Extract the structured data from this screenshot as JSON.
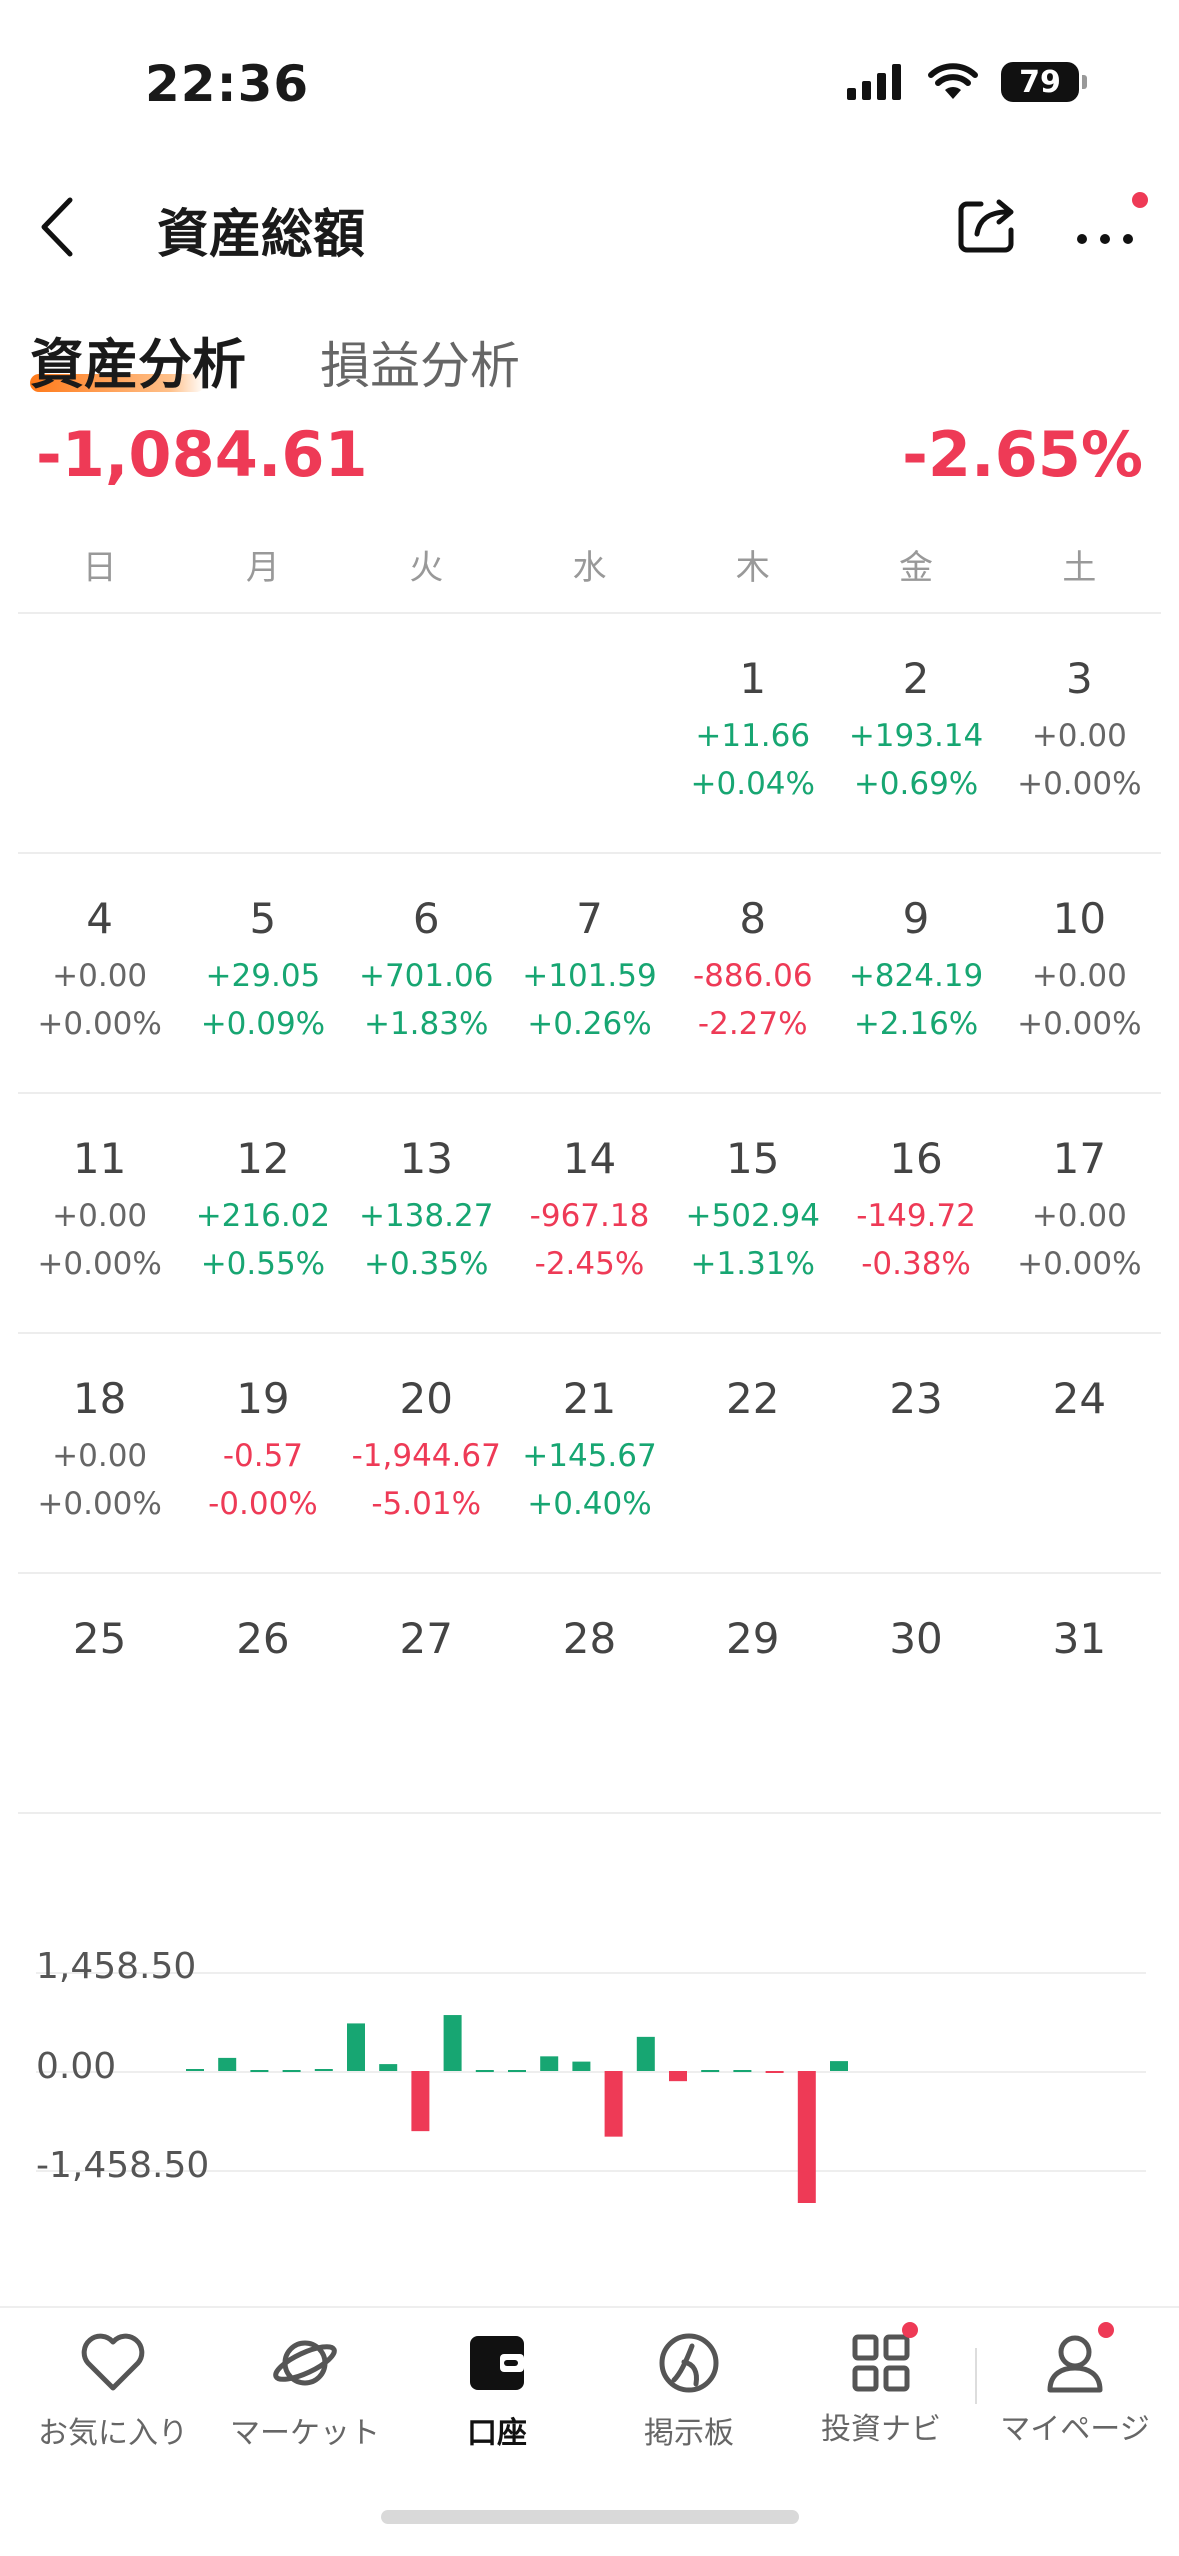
{
  "status_bar": {
    "time": "22:36",
    "battery": "79"
  },
  "header": {
    "title": "資産総額"
  },
  "tabs": {
    "active": "資産分析",
    "other": "損益分析"
  },
  "summary": {
    "total_change": "-1,084.61",
    "total_percent": "-2.65%"
  },
  "calendar": {
    "weekdays": [
      "日",
      "月",
      "火",
      "水",
      "木",
      "金",
      "土"
    ],
    "weeks": [
      [
        {
          "day": "",
          "value": "",
          "percent": "",
          "trend": "n"
        },
        {
          "day": "",
          "value": "",
          "percent": "",
          "trend": "n"
        },
        {
          "day": "",
          "value": "",
          "percent": "",
          "trend": "n"
        },
        {
          "day": "",
          "value": "",
          "percent": "",
          "trend": "n"
        },
        {
          "day": "1",
          "value": "+11.66",
          "percent": "+0.04%",
          "trend": "g"
        },
        {
          "day": "2",
          "value": "+193.14",
          "percent": "+0.69%",
          "trend": "g"
        },
        {
          "day": "3",
          "value": "+0.00",
          "percent": "+0.00%",
          "trend": "n"
        }
      ],
      [
        {
          "day": "4",
          "value": "+0.00",
          "percent": "+0.00%",
          "trend": "n"
        },
        {
          "day": "5",
          "value": "+29.05",
          "percent": "+0.09%",
          "trend": "g"
        },
        {
          "day": "6",
          "value": "+701.06",
          "percent": "+1.83%",
          "trend": "g"
        },
        {
          "day": "7",
          "value": "+101.59",
          "percent": "+0.26%",
          "trend": "g"
        },
        {
          "day": "8",
          "value": "-886.06",
          "percent": "-2.27%",
          "trend": "r"
        },
        {
          "day": "9",
          "value": "+824.19",
          "percent": "+2.16%",
          "trend": "g"
        },
        {
          "day": "10",
          "value": "+0.00",
          "percent": "+0.00%",
          "trend": "n"
        }
      ],
      [
        {
          "day": "11",
          "value": "+0.00",
          "percent": "+0.00%",
          "trend": "n"
        },
        {
          "day": "12",
          "value": "+216.02",
          "percent": "+0.55%",
          "trend": "g"
        },
        {
          "day": "13",
          "value": "+138.27",
          "percent": "+0.35%",
          "trend": "g"
        },
        {
          "day": "14",
          "value": "-967.18",
          "percent": "-2.45%",
          "trend": "r"
        },
        {
          "day": "15",
          "value": "+502.94",
          "percent": "+1.31%",
          "trend": "g"
        },
        {
          "day": "16",
          "value": "-149.72",
          "percent": "-0.38%",
          "trend": "r"
        },
        {
          "day": "17",
          "value": "+0.00",
          "percent": "+0.00%",
          "trend": "n"
        }
      ],
      [
        {
          "day": "18",
          "value": "+0.00",
          "percent": "+0.00%",
          "trend": "n"
        },
        {
          "day": "19",
          "value": "-0.57",
          "percent": "-0.00%",
          "trend": "r"
        },
        {
          "day": "20",
          "value": "-1,944.67",
          "percent": "-5.01%",
          "trend": "r"
        },
        {
          "day": "21",
          "value": "+145.67",
          "percent": "+0.40%",
          "trend": "g"
        },
        {
          "day": "22",
          "value": "",
          "percent": "",
          "trend": "n"
        },
        {
          "day": "23",
          "value": "",
          "percent": "",
          "trend": "n"
        },
        {
          "day": "24",
          "value": "",
          "percent": "",
          "trend": "n"
        }
      ],
      [
        {
          "day": "25",
          "value": "",
          "percent": "",
          "trend": "n"
        },
        {
          "day": "26",
          "value": "",
          "percent": "",
          "trend": "n"
        },
        {
          "day": "27",
          "value": "",
          "percent": "",
          "trend": "n"
        },
        {
          "day": "28",
          "value": "",
          "percent": "",
          "trend": "n"
        },
        {
          "day": "29",
          "value": "",
          "percent": "",
          "trend": "n"
        },
        {
          "day": "30",
          "value": "",
          "percent": "",
          "trend": "n"
        },
        {
          "day": "31",
          "value": "",
          "percent": "",
          "trend": "n"
        }
      ]
    ]
  },
  "chart_data": {
    "type": "bar",
    "y_labels": [
      "1,458.50",
      "0.00",
      "-1,458.50"
    ],
    "ylim": [
      -1944.67,
      1458.5
    ],
    "categories": [
      "1",
      "2",
      "3",
      "4",
      "5",
      "6",
      "7",
      "8",
      "9",
      "10",
      "11",
      "12",
      "13",
      "14",
      "15",
      "16",
      "17",
      "18",
      "19",
      "20",
      "21"
    ],
    "values": [
      11.66,
      193.14,
      0.0,
      0.0,
      29.05,
      701.06,
      101.59,
      -886.06,
      824.19,
      0.0,
      0.0,
      216.02,
      138.27,
      -967.18,
      502.94,
      -149.72,
      0.0,
      0.0,
      -0.57,
      -1944.67,
      145.67
    ],
    "colors": {
      "positive": "#17a672",
      "negative": "#ee3a56"
    }
  },
  "bottom_nav": [
    {
      "label": "お気に入り",
      "icon": "heart-icon"
    },
    {
      "label": "マーケット",
      "icon": "planet-icon"
    },
    {
      "label": "口座",
      "icon": "wallet-icon"
    },
    {
      "label": "掲示板",
      "icon": "board-icon"
    },
    {
      "label": "投資ナビ",
      "icon": "grid-icon"
    },
    {
      "label": "マイページ",
      "icon": "user-icon"
    }
  ]
}
